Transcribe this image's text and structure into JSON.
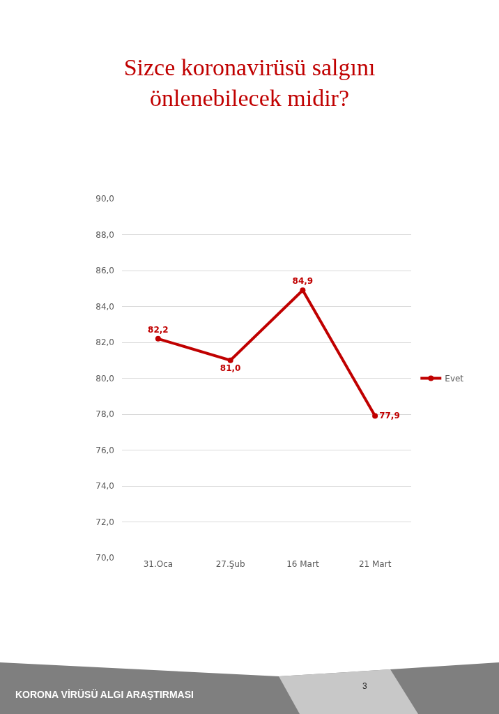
{
  "chart_data": {
    "type": "line",
    "title": "Sizce koronavirüsü salgını\nönlenebilecek midir?",
    "categories": [
      "31.Oca",
      "27.Şub",
      "16 Mart",
      "21 Mart"
    ],
    "series": [
      {
        "name": "Evet",
        "color": "#c00000",
        "values": [
          82.2,
          81.0,
          84.9,
          77.9
        ],
        "value_labels": [
          "82,2",
          "81,0",
          "84,9",
          "77,9"
        ]
      }
    ],
    "ylim": [
      70,
      90
    ],
    "yticks": [
      {
        "value": 70,
        "label": "70,0"
      },
      {
        "value": 72,
        "label": "72,0"
      },
      {
        "value": 74,
        "label": "74,0"
      },
      {
        "value": 76,
        "label": "76,0"
      },
      {
        "value": 78,
        "label": "78,0"
      },
      {
        "value": 80,
        "label": "80,0"
      },
      {
        "value": 82,
        "label": "82,0"
      },
      {
        "value": 84,
        "label": "84,0"
      },
      {
        "value": 86,
        "label": "86,0"
      },
      {
        "value": 88,
        "label": "88,0"
      },
      {
        "value": 90,
        "label": "90,0"
      }
    ],
    "grid": "y",
    "legend": "right",
    "marker": "circle",
    "line_style": "solid",
    "annotations": [
      "KORONA VİRÜSÜ ALGI ARAŞTIRMASI",
      "3"
    ]
  }
}
